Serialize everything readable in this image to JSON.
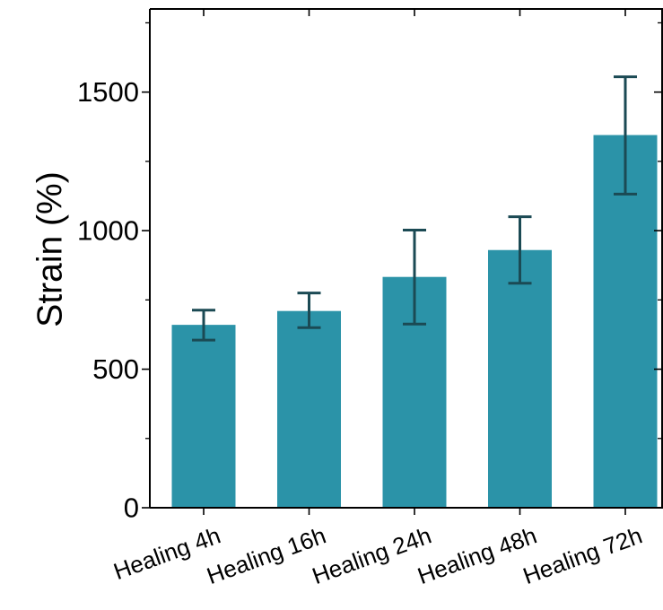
{
  "chart_data": {
    "type": "bar",
    "title": "",
    "xlabel": "",
    "ylabel": "Strain (%)",
    "categories": [
      "Healing 4h",
      "Healing 16h",
      "Healing 24h",
      "Healing 48h",
      "Healing 72h"
    ],
    "values": [
      660,
      710,
      833,
      930,
      1345
    ],
    "error": {
      "lower": [
        605,
        650,
        663,
        810,
        1132
      ],
      "upper": [
        713,
        775,
        1002,
        1050,
        1555
      ]
    },
    "ylim": [
      0,
      1800
    ],
    "yticks": [
      0,
      500,
      1000,
      1500
    ],
    "yminor_step": 250,
    "grid": false,
    "legend": "none",
    "colors": {
      "bar": "#2b93a8",
      "error_bar": "#1b4a54",
      "axis": "#000000"
    }
  }
}
